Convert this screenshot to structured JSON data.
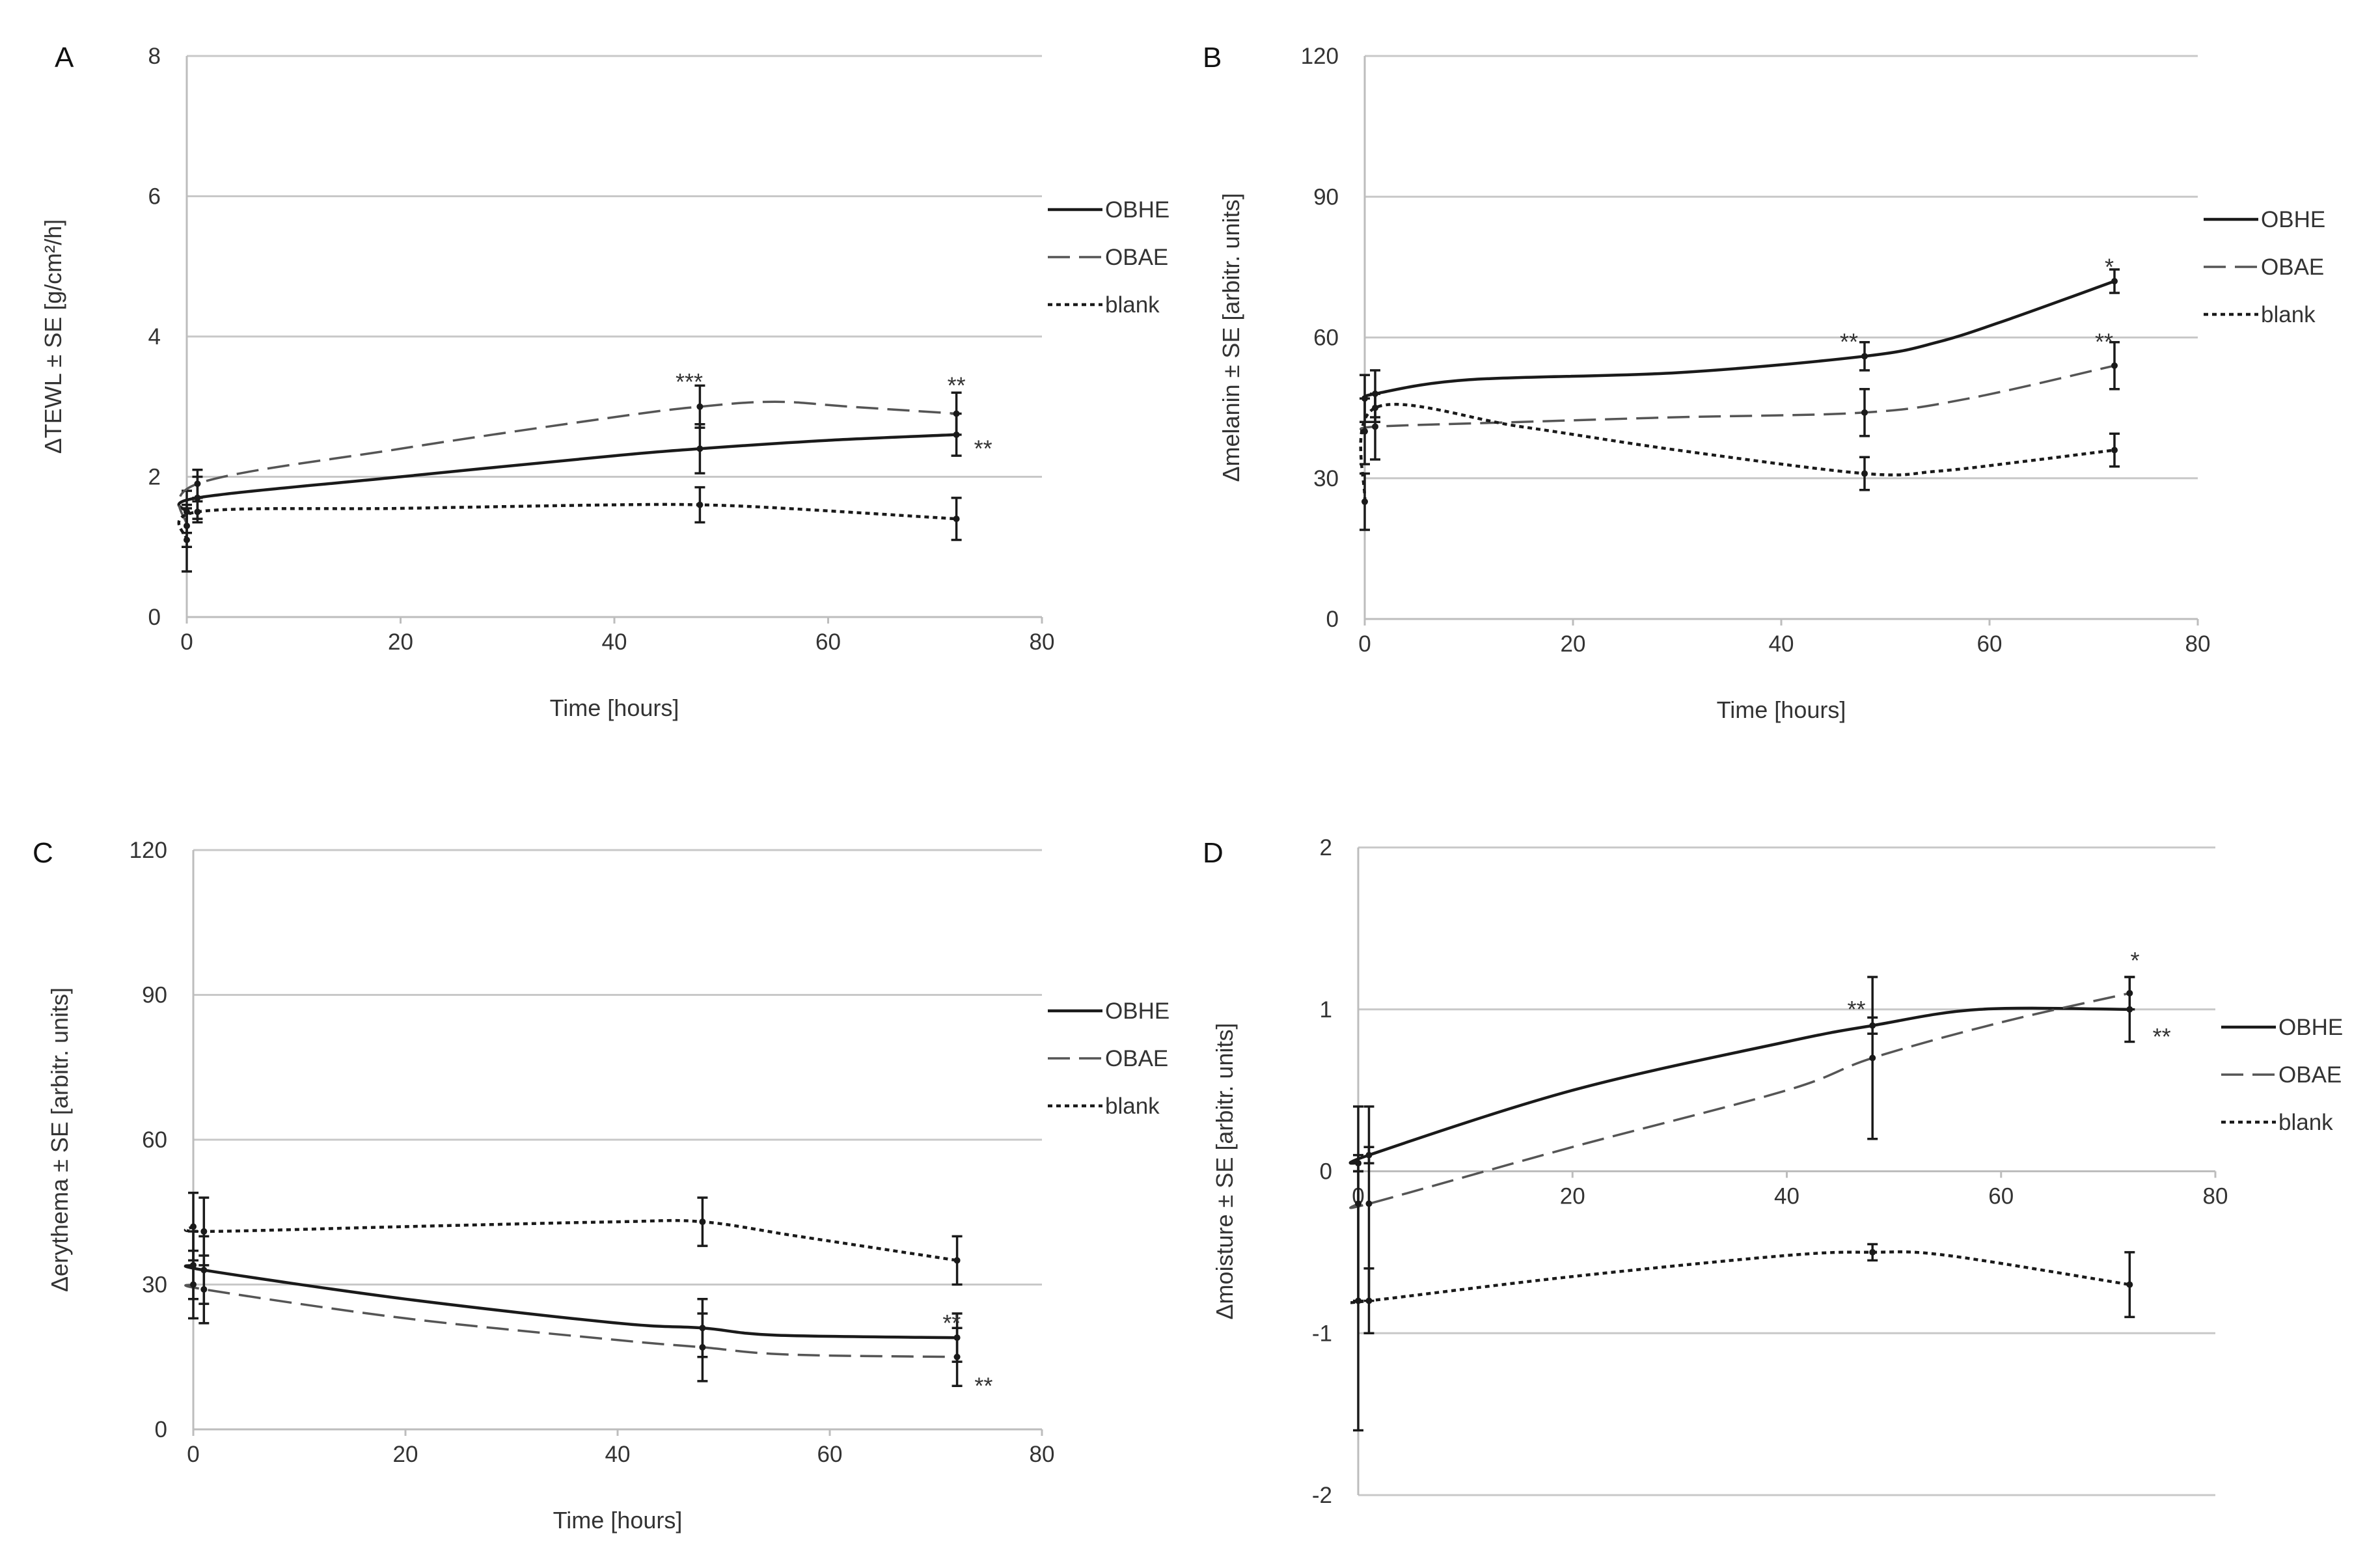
{
  "colors": {
    "grid": "#c8c8c8",
    "axis": "#bdbdbd",
    "series_OBHE": "#1a1a1a",
    "series_OBAE": "#555555",
    "series_blank": "#1a1a1a"
  },
  "chart_data": [
    {
      "panel": "A",
      "type": "line",
      "xlabel": "Time [hours]",
      "ylabel": "ΔTEWL ± SE [g/cm²/h]",
      "xlim": [
        0,
        80
      ],
      "ylim": [
        0,
        8
      ],
      "xticks": [
        0,
        20,
        40,
        60,
        80
      ],
      "yticks": [
        0,
        2,
        4,
        6,
        8
      ],
      "legend": [
        "OBHE",
        "OBAE",
        "blank"
      ],
      "series": [
        {
          "name": "OBHE",
          "style": "solid",
          "x": [
            0,
            1,
            48,
            72
          ],
          "y": [
            1.5,
            1.7,
            2.4,
            2.6
          ],
          "err": [
            0.3,
            0.3,
            0.35,
            0.3
          ],
          "curve": [
            [
              0,
              1.5
            ],
            [
              1,
              1.7
            ],
            [
              20,
              2.0
            ],
            [
              40,
              2.3
            ],
            [
              48,
              2.4
            ],
            [
              60,
              2.52
            ],
            [
              72,
              2.6
            ]
          ]
        },
        {
          "name": "OBAE",
          "style": "dashed",
          "x": [
            0,
            1,
            48,
            72
          ],
          "y": [
            1.3,
            1.9,
            3.0,
            2.9
          ],
          "err": [
            0.3,
            0.2,
            0.3,
            0.3
          ],
          "curve": [
            [
              0,
              1.3
            ],
            [
              1,
              1.9
            ],
            [
              20,
              2.4
            ],
            [
              40,
              2.85
            ],
            [
              48,
              3.0
            ],
            [
              55,
              3.07
            ],
            [
              62,
              3.0
            ],
            [
              72,
              2.9
            ]
          ]
        },
        {
          "name": "blank",
          "style": "dotted",
          "x": [
            0,
            1,
            48,
            72
          ],
          "y": [
            1.1,
            1.5,
            1.6,
            1.4
          ],
          "err": [
            0.45,
            0.15,
            0.25,
            0.3
          ],
          "curve": [
            [
              0,
              1.1
            ],
            [
              1,
              1.5
            ],
            [
              20,
              1.55
            ],
            [
              40,
              1.6
            ],
            [
              48,
              1.6
            ],
            [
              56,
              1.55
            ],
            [
              72,
              1.4
            ]
          ]
        }
      ],
      "annotations": [
        {
          "text": "***",
          "x": 47,
          "y": 3.35
        },
        {
          "text": "**",
          "x": 72,
          "y": 3.3
        },
        {
          "text": "**",
          "x": 74.5,
          "y": 2.4
        }
      ]
    },
    {
      "panel": "B",
      "type": "line",
      "xlabel": "Time [hours]",
      "ylabel": "Δmelanin ± SE [arbitr. units]",
      "xlim": [
        0,
        80
      ],
      "ylim": [
        0,
        120
      ],
      "xticks": [
        0,
        20,
        40,
        60,
        80
      ],
      "yticks": [
        0,
        30,
        60,
        90,
        120
      ],
      "legend": [
        "OBHE",
        "OBAE",
        "blank"
      ],
      "series": [
        {
          "name": "OBHE",
          "style": "solid",
          "x": [
            0,
            1,
            48,
            72
          ],
          "y": [
            47,
            48,
            56,
            72
          ],
          "err": [
            5,
            5,
            3,
            2.5
          ],
          "curve": [
            [
              0,
              47
            ],
            [
              1,
              48
            ],
            [
              10,
              51
            ],
            [
              30,
              52.5
            ],
            [
              48,
              56
            ],
            [
              55,
              59
            ],
            [
              62,
              64
            ],
            [
              72,
              72
            ]
          ]
        },
        {
          "name": "OBAE",
          "style": "dashed",
          "x": [
            0,
            1,
            48,
            72
          ],
          "y": [
            40,
            41,
            44,
            54
          ],
          "err": [
            7,
            7,
            5,
            5
          ],
          "curve": [
            [
              0,
              40
            ],
            [
              1,
              41
            ],
            [
              15,
              42
            ],
            [
              30,
              43
            ],
            [
              48,
              44
            ],
            [
              58,
              47
            ],
            [
              72,
              54
            ]
          ]
        },
        {
          "name": "blank",
          "style": "dotted",
          "x": [
            0,
            1,
            48,
            72
          ],
          "y": [
            25,
            45,
            31,
            36
          ],
          "err": [
            6,
            3,
            3.5,
            3.5
          ],
          "curve": [
            [
              0,
              25
            ],
            [
              1,
              45
            ],
            [
              15,
              41
            ],
            [
              30,
              36
            ],
            [
              48,
              31
            ],
            [
              55,
              31.5
            ],
            [
              63,
              33.5
            ],
            [
              72,
              36
            ]
          ]
        }
      ],
      "annotations": [
        {
          "text": "*",
          "x": 71.5,
          "y": 75
        },
        {
          "text": "**",
          "x": 46.5,
          "y": 59
        },
        {
          "text": "**",
          "x": 71,
          "y": 59
        }
      ]
    },
    {
      "panel": "C",
      "type": "line",
      "xlabel": "Time [hours]",
      "ylabel": "Δerythema ± SE [arbitr. units]",
      "xlim": [
        0,
        80
      ],
      "ylim": [
        0,
        120
      ],
      "xticks": [
        0,
        20,
        40,
        60,
        80
      ],
      "yticks": [
        0,
        30,
        60,
        90,
        120
      ],
      "legend": [
        "OBHE",
        "OBAE",
        "blank"
      ],
      "series": [
        {
          "name": "OBHE",
          "style": "solid",
          "x": [
            0,
            1,
            48,
            72
          ],
          "y": [
            34,
            33,
            21,
            19
          ],
          "err": [
            7,
            7,
            6,
            5
          ],
          "curve": [
            [
              0,
              34
            ],
            [
              1,
              33
            ],
            [
              20,
              27
            ],
            [
              40,
              22
            ],
            [
              48,
              21
            ],
            [
              55,
              19.5
            ],
            [
              72,
              19
            ]
          ]
        },
        {
          "name": "OBAE",
          "style": "dashed",
          "x": [
            0,
            1,
            48,
            72
          ],
          "y": [
            30,
            29,
            17,
            15
          ],
          "err": [
            7,
            7,
            7,
            6
          ],
          "curve": [
            [
              0,
              30
            ],
            [
              1,
              29
            ],
            [
              20,
              23
            ],
            [
              40,
              18.5
            ],
            [
              48,
              17
            ],
            [
              56,
              15.5
            ],
            [
              72,
              15
            ]
          ]
        },
        {
          "name": "blank",
          "style": "dotted",
          "x": [
            0,
            1,
            48,
            72
          ],
          "y": [
            42,
            41,
            43,
            35
          ],
          "err": [
            7,
            7,
            5,
            5
          ],
          "curve": [
            [
              0,
              42
            ],
            [
              1,
              41
            ],
            [
              20,
              42
            ],
            [
              40,
              43
            ],
            [
              48,
              43
            ],
            [
              57,
              40
            ],
            [
              72,
              35
            ]
          ]
        }
      ],
      "annotations": [
        {
          "text": "**",
          "x": 71.5,
          "y": 22
        },
        {
          "text": "**",
          "x": 74.5,
          "y": 9
        }
      ]
    },
    {
      "panel": "D",
      "type": "line",
      "xlabel": "Time [hours]",
      "ylabel": "Δmoisture ± SE [arbitr. units]",
      "xlim": [
        0,
        80
      ],
      "ylim": [
        -2,
        2
      ],
      "xticks": [
        0,
        20,
        40,
        60,
        80
      ],
      "yticks": [
        -2,
        -1,
        0,
        1,
        2
      ],
      "legend": [
        "OBHE",
        "OBAE",
        "blank"
      ],
      "series": [
        {
          "name": "OBHE",
          "style": "solid",
          "x": [
            0,
            1,
            48,
            72
          ],
          "y": [
            0.05,
            0.1,
            0.9,
            1.0
          ],
          "err": [
            0.05,
            0.05,
            0.05,
            0.2
          ],
          "curve": [
            [
              0,
              0.05
            ],
            [
              1,
              0.1
            ],
            [
              20,
              0.5
            ],
            [
              40,
              0.8
            ],
            [
              48,
              0.9
            ],
            [
              58,
              1.0
            ],
            [
              72,
              1.0
            ]
          ]
        },
        {
          "name": "OBAE",
          "style": "dashed",
          "x": [
            0,
            1,
            48,
            72
          ],
          "y": [
            -0.2,
            -0.2,
            0.7,
            1.1
          ],
          "err": [
            0.6,
            0.6,
            0.5,
            0.1
          ],
          "curve": [
            [
              0,
              -0.2
            ],
            [
              1,
              -0.2
            ],
            [
              20,
              0.15
            ],
            [
              40,
              0.5
            ],
            [
              48,
              0.7
            ],
            [
              60,
              0.92
            ],
            [
              72,
              1.1
            ]
          ]
        },
        {
          "name": "blank",
          "style": "dotted",
          "x": [
            0,
            1,
            48,
            72
          ],
          "y": [
            -0.8,
            -0.8,
            -0.5,
            -0.7
          ],
          "err": [
            0.8,
            0.2,
            0.05,
            0.2
          ],
          "curve": [
            [
              0,
              -0.8
            ],
            [
              1,
              -0.8
            ],
            [
              20,
              -0.65
            ],
            [
              40,
              -0.52
            ],
            [
              48,
              -0.5
            ],
            [
              55,
              -0.52
            ],
            [
              72,
              -0.7
            ]
          ]
        }
      ],
      "annotations": [
        {
          "text": "**",
          "x": 46.5,
          "y": 1.0
        },
        {
          "text": "*",
          "x": 72.5,
          "y": 1.3
        },
        {
          "text": "**",
          "x": 75,
          "y": 0.83
        }
      ]
    }
  ]
}
